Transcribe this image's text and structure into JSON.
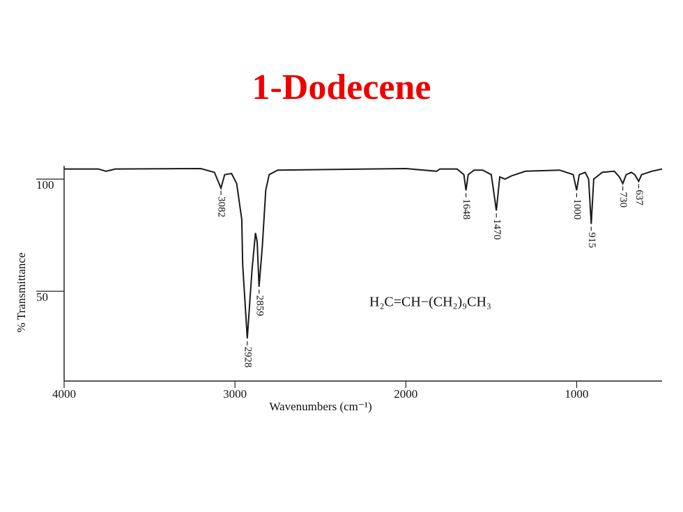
{
  "chart_data": {
    "type": "line",
    "title": "1-Dodecene",
    "x_label": "Wavenumbers (cm⁻¹)",
    "y_label": "% Transmittance",
    "formula": "H₂C=CH−(CH₂)₉CH₃",
    "color": "#1a1a1a",
    "xlim": [
      4000,
      500
    ],
    "ylim": [
      10,
      105
    ],
    "xticks": [
      4000,
      3000,
      2000,
      1000
    ],
    "yticks": [
      50,
      100
    ],
    "x": [
      4000,
      3800,
      3755,
      3700,
      3200,
      3120,
      3082,
      3060,
      3020,
      2990,
      2960,
      2955,
      2928,
      2900,
      2880,
      2870,
      2859,
      2840,
      2820,
      2800,
      2750,
      2000,
      1820,
      1800,
      1700,
      1660,
      1648,
      1635,
      1600,
      1550,
      1500,
      1470,
      1450,
      1420,
      1380,
      1300,
      1100,
      1020,
      1000,
      985,
      950,
      930,
      915,
      900,
      850,
      780,
      750,
      730,
      710,
      680,
      660,
      637,
      620,
      560,
      500
    ],
    "values": [
      104.5,
      104.5,
      103.5,
      104.5,
      104.7,
      103,
      96,
      102,
      102.5,
      98,
      82,
      62,
      29,
      60,
      76,
      72,
      52,
      70,
      95,
      102,
      104,
      104.7,
      103.5,
      104.5,
      104.5,
      102,
      95,
      102,
      104,
      104,
      102,
      86,
      101,
      100,
      101.5,
      103.5,
      104,
      102,
      95,
      102,
      103,
      100,
      80,
      100,
      103,
      103.5,
      101,
      98,
      102,
      103,
      102,
      99,
      102,
      103.5,
      104.5
    ],
    "peak_labels": [
      3082,
      2928,
      2859,
      1648,
      1470,
      1000,
      915,
      730,
      637
    ]
  }
}
